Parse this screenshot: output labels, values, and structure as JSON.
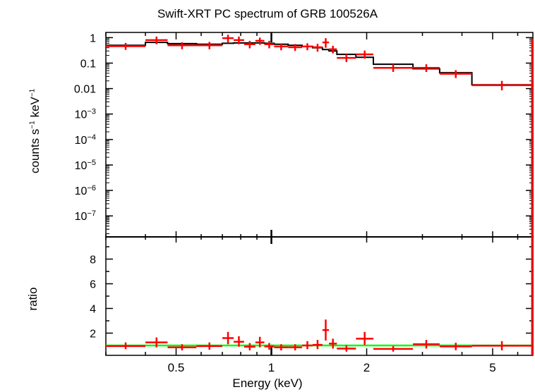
{
  "title": "Swift-XRT PC spectrum of GRB 100526A",
  "top_panel": {
    "ylabel_main": "counts s",
    "ylabel_exp1": "−1",
    "ylabel_mid": " keV",
    "ylabel_exp2": "−1"
  },
  "bottom_panel": {
    "ylabel": "ratio"
  },
  "xlabel": "Energy (keV)",
  "chart_data": [
    {
      "type": "line",
      "panel": "spectrum",
      "xscale": "log",
      "yscale": "log",
      "xlim": [
        0.3,
        6.7
      ],
      "ylim": [
        1.5e-08,
        1.6
      ],
      "xticks": [
        "0.5",
        "1",
        "2",
        "5"
      ],
      "yticks": [
        {
          "base": "1",
          "exp": ""
        },
        {
          "base": "0.1",
          "exp": ""
        },
        {
          "base": "0.01",
          "exp": ""
        },
        {
          "base": "10",
          "exp": "−3"
        },
        {
          "base": "10",
          "exp": "−4"
        },
        {
          "base": "10",
          "exp": "−5"
        },
        {
          "base": "10",
          "exp": "−6"
        },
        {
          "base": "10",
          "exp": "−7"
        }
      ],
      "series": [
        {
          "kind": "data",
          "color": "#ff0000",
          "points": [
            {
              "xlo": 0.3,
              "xhi": 0.4,
              "y": 0.46,
              "ylo": 0.33,
              "yhi": 0.62
            },
            {
              "xlo": 0.4,
              "xhi": 0.47,
              "y": 0.8,
              "ylo": 0.55,
              "yhi": 1.1
            },
            {
              "xlo": 0.47,
              "xhi": 0.58,
              "y": 0.5,
              "ylo": 0.35,
              "yhi": 0.66
            },
            {
              "xlo": 0.58,
              "xhi": 0.7,
              "y": 0.5,
              "ylo": 0.35,
              "yhi": 0.68
            },
            {
              "xlo": 0.7,
              "xhi": 0.76,
              "y": 0.95,
              "ylo": 0.65,
              "yhi": 1.3
            },
            {
              "xlo": 0.76,
              "xhi": 0.82,
              "y": 0.8,
              "ylo": 0.55,
              "yhi": 1.1
            },
            {
              "xlo": 0.82,
              "xhi": 0.89,
              "y": 0.55,
              "ylo": 0.38,
              "yhi": 0.75
            },
            {
              "xlo": 0.89,
              "xhi": 0.95,
              "y": 0.75,
              "ylo": 0.52,
              "yhi": 1.0
            },
            {
              "xlo": 0.95,
              "xhi": 1.02,
              "y": 0.55,
              "ylo": 0.38,
              "yhi": 0.75
            },
            {
              "xlo": 1.02,
              "xhi": 1.13,
              "y": 0.45,
              "ylo": 0.32,
              "yhi": 0.6
            },
            {
              "xlo": 1.13,
              "xhi": 1.25,
              "y": 0.42,
              "ylo": 0.3,
              "yhi": 0.56
            },
            {
              "xlo": 1.25,
              "xhi": 1.35,
              "y": 0.45,
              "ylo": 0.32,
              "yhi": 0.6
            },
            {
              "xlo": 1.35,
              "xhi": 1.45,
              "y": 0.42,
              "ylo": 0.28,
              "yhi": 0.57
            },
            {
              "xlo": 1.45,
              "xhi": 1.52,
              "y": 0.65,
              "ylo": 0.4,
              "yhi": 0.95
            },
            {
              "xlo": 1.52,
              "xhi": 1.61,
              "y": 0.35,
              "ylo": 0.24,
              "yhi": 0.48
            },
            {
              "xlo": 1.61,
              "xhi": 1.85,
              "y": 0.16,
              "ylo": 0.11,
              "yhi": 0.22
            },
            {
              "xlo": 1.85,
              "xhi": 2.1,
              "y": 0.22,
              "ylo": 0.15,
              "yhi": 0.31
            },
            {
              "xlo": 2.1,
              "xhi": 2.8,
              "y": 0.065,
              "ylo": 0.045,
              "yhi": 0.09
            },
            {
              "xlo": 2.8,
              "xhi": 3.4,
              "y": 0.065,
              "ylo": 0.045,
              "yhi": 0.09
            },
            {
              "xlo": 3.4,
              "xhi": 4.3,
              "y": 0.038,
              "ylo": 0.026,
              "yhi": 0.053
            },
            {
              "xlo": 4.3,
              "xhi": 6.65,
              "y": 0.0135,
              "ylo": 0.0085,
              "yhi": 0.02
            },
            {
              "xlo": 6.62,
              "xhi": 6.7,
              "y": 0.04,
              "ylo": 1e-08,
              "yhi": 0.9
            }
          ]
        },
        {
          "kind": "model",
          "color": "#000000",
          "steps": [
            {
              "xlo": 0.3,
              "xhi": 0.4,
              "y": 0.5
            },
            {
              "xlo": 0.4,
              "xhi": 0.47,
              "y": 0.65
            },
            {
              "xlo": 0.47,
              "xhi": 0.58,
              "y": 0.58
            },
            {
              "xlo": 0.58,
              "xhi": 0.7,
              "y": 0.55
            },
            {
              "xlo": 0.7,
              "xhi": 0.76,
              "y": 0.6
            },
            {
              "xlo": 0.76,
              "xhi": 0.82,
              "y": 0.62
            },
            {
              "xlo": 0.82,
              "xhi": 0.89,
              "y": 0.62
            },
            {
              "xlo": 0.89,
              "xhi": 0.95,
              "y": 0.62
            },
            {
              "xlo": 0.95,
              "xhi": 1.02,
              "y": 0.6
            },
            {
              "xlo": 1.02,
              "xhi": 1.13,
              "y": 0.55
            },
            {
              "xlo": 1.13,
              "xhi": 1.25,
              "y": 0.5
            },
            {
              "xlo": 1.25,
              "xhi": 1.35,
              "y": 0.45
            },
            {
              "xlo": 1.35,
              "xhi": 1.45,
              "y": 0.4
            },
            {
              "xlo": 1.45,
              "xhi": 1.52,
              "y": 0.34
            },
            {
              "xlo": 1.52,
              "xhi": 1.61,
              "y": 0.3
            },
            {
              "xlo": 1.61,
              "xhi": 1.85,
              "y": 0.22
            },
            {
              "xlo": 1.85,
              "xhi": 2.1,
              "y": 0.17
            },
            {
              "xlo": 2.1,
              "xhi": 2.8,
              "y": 0.09
            },
            {
              "xlo": 2.8,
              "xhi": 3.4,
              "y": 0.06
            },
            {
              "xlo": 3.4,
              "xhi": 4.3,
              "y": 0.042
            },
            {
              "xlo": 4.3,
              "xhi": 6.65,
              "y": 0.014
            },
            {
              "xlo": 6.65,
              "xhi": 6.7,
              "y": 1e-08
            }
          ]
        }
      ]
    },
    {
      "type": "line",
      "panel": "ratio",
      "xscale": "log",
      "yscale": "linear",
      "xlim": [
        0.3,
        6.7
      ],
      "ylim": [
        0.2,
        9.8
      ],
      "yticks": [
        "2",
        "4",
        "6",
        "8"
      ],
      "series": [
        {
          "kind": "data",
          "color": "#ff0000",
          "points": [
            {
              "xlo": 0.3,
              "xhi": 0.4,
              "y": 0.95,
              "ylo": 0.7,
              "yhi": 1.25
            },
            {
              "xlo": 0.4,
              "xhi": 0.47,
              "y": 1.25,
              "ylo": 0.85,
              "yhi": 1.65
            },
            {
              "xlo": 0.47,
              "xhi": 0.58,
              "y": 0.85,
              "ylo": 0.6,
              "yhi": 1.1
            },
            {
              "xlo": 0.58,
              "xhi": 0.7,
              "y": 0.95,
              "ylo": 0.65,
              "yhi": 1.25
            },
            {
              "xlo": 0.7,
              "xhi": 0.76,
              "y": 1.6,
              "ylo": 1.1,
              "yhi": 2.1
            },
            {
              "xlo": 0.76,
              "xhi": 0.82,
              "y": 1.3,
              "ylo": 0.9,
              "yhi": 1.75
            },
            {
              "xlo": 0.82,
              "xhi": 0.89,
              "y": 0.9,
              "ylo": 0.6,
              "yhi": 1.2
            },
            {
              "xlo": 0.89,
              "xhi": 0.95,
              "y": 1.25,
              "ylo": 0.85,
              "yhi": 1.7
            },
            {
              "xlo": 0.95,
              "xhi": 1.02,
              "y": 0.92,
              "ylo": 0.65,
              "yhi": 1.2
            },
            {
              "xlo": 1.02,
              "xhi": 1.13,
              "y": 0.85,
              "ylo": 0.6,
              "yhi": 1.1
            },
            {
              "xlo": 1.13,
              "xhi": 1.25,
              "y": 0.85,
              "ylo": 0.6,
              "yhi": 1.1
            },
            {
              "xlo": 1.25,
              "xhi": 1.35,
              "y": 1.0,
              "ylo": 0.7,
              "yhi": 1.35
            },
            {
              "xlo": 1.35,
              "xhi": 1.45,
              "y": 1.05,
              "ylo": 0.7,
              "yhi": 1.45
            },
            {
              "xlo": 1.45,
              "xhi": 1.52,
              "y": 2.25,
              "ylo": 1.4,
              "yhi": 3.1
            },
            {
              "xlo": 1.52,
              "xhi": 1.61,
              "y": 1.15,
              "ylo": 0.75,
              "yhi": 1.55
            },
            {
              "xlo": 1.61,
              "xhi": 1.85,
              "y": 0.75,
              "ylo": 0.5,
              "yhi": 1.0
            },
            {
              "xlo": 1.85,
              "xhi": 2.1,
              "y": 1.55,
              "ylo": 1.05,
              "yhi": 2.1
            },
            {
              "xlo": 2.1,
              "xhi": 2.8,
              "y": 0.72,
              "ylo": 0.5,
              "yhi": 0.95
            },
            {
              "xlo": 2.8,
              "xhi": 3.4,
              "y": 1.1,
              "ylo": 0.75,
              "yhi": 1.45
            },
            {
              "xlo": 3.4,
              "xhi": 4.3,
              "y": 0.92,
              "ylo": 0.62,
              "yhi": 1.22
            },
            {
              "xlo": 4.3,
              "xhi": 6.65,
              "y": 0.98,
              "ylo": 0.6,
              "yhi": 1.35
            },
            {
              "xlo": 6.62,
              "xhi": 6.7,
              "y": 9.2,
              "ylo": 0.2,
              "yhi": 9.8
            }
          ]
        },
        {
          "kind": "reference",
          "color": "#00ff00",
          "y": 1.0
        }
      ]
    }
  ]
}
